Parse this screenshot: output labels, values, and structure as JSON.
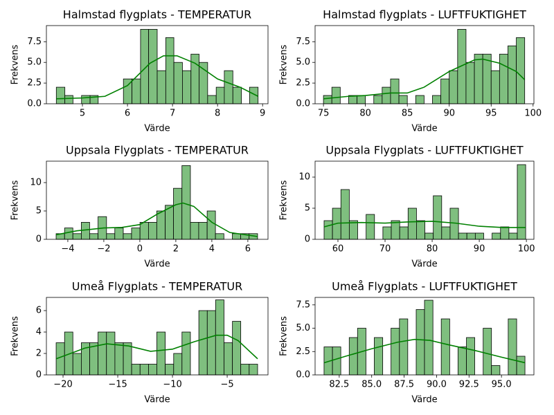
{
  "chart_data": [
    {
      "type": "histogram",
      "title": "Halmstad flygplats - TEMPERATUR",
      "x_label": "Värde",
      "y_label": "Frekvens",
      "color": "#7fbf7f",
      "bins": [
        4.42,
        4.61,
        4.79,
        4.98,
        5.17,
        5.35,
        5.54,
        5.73,
        5.91,
        6.1,
        6.29,
        6.47,
        6.66,
        6.85,
        7.03,
        7.22,
        7.41,
        7.59,
        7.78,
        7.97,
        8.15,
        8.34,
        8.53,
        8.71,
        8.9
      ],
      "counts": [
        2,
        1,
        0,
        1,
        1,
        0,
        0,
        0,
        3,
        3,
        9,
        9,
        4,
        8,
        5,
        4,
        6,
        5,
        1,
        2,
        4,
        2,
        0,
        2
      ],
      "line": {
        "color": "green",
        "x": [
          4.42,
          5.0,
          5.5,
          6.0,
          6.5,
          6.8,
          7.1,
          7.5,
          8.0,
          8.5,
          8.9
        ],
        "values": [
          0.6,
          0.7,
          0.9,
          2.2,
          4.9,
          5.8,
          5.8,
          4.9,
          3.0,
          2.0,
          0.9
        ]
      },
      "xlim": [
        4.2,
        9.12
      ],
      "xticks": [
        5,
        6,
        7,
        8,
        9
      ],
      "ylim": [
        0,
        9.45
      ],
      "yticks": [
        {
          "value": 0,
          "label": "0.0"
        },
        2.5,
        {
          "value": 5,
          "label": "5.0"
        },
        7.5
      ]
    },
    {
      "type": "histogram",
      "title": "Halmstad flygplats - LUFTFUKTIGHET",
      "x_label": "Värde",
      "y_label": "Frekvens",
      "color": "#7fbf7f",
      "bins": [
        75,
        76,
        77,
        78,
        79,
        80,
        81,
        82,
        83,
        84,
        85,
        86,
        87,
        88,
        89,
        90,
        91,
        92,
        93,
        94,
        95,
        96,
        97,
        98,
        99
      ],
      "counts": [
        1,
        2,
        0,
        1,
        1,
        0,
        1,
        2,
        3,
        1,
        0,
        1,
        0,
        1,
        3,
        4,
        9,
        5,
        6,
        6,
        4,
        6,
        7,
        8
      ],
      "line": {
        "color": "green",
        "x": [
          75,
          78,
          80,
          83,
          85,
          87,
          90,
          93,
          94,
          96,
          98,
          99
        ],
        "values": [
          0.6,
          0.9,
          1.0,
          1.3,
          1.3,
          2.0,
          3.9,
          5.3,
          5.4,
          4.9,
          3.9,
          2.9
        ]
      },
      "xlim": [
        74.0,
        100.1
      ],
      "xticks": [
        75,
        80,
        85,
        90,
        95,
        100
      ],
      "ylim": [
        0,
        9.45
      ],
      "yticks": [
        {
          "value": 0,
          "label": "0.0"
        },
        2.5,
        {
          "value": 5,
          "label": "5.0"
        },
        7.5
      ]
    },
    {
      "type": "histogram",
      "title": "Uppsala Flygplats - TEMPERATUR",
      "x_label": "Värde",
      "y_label": "Frekvens",
      "color": "#7fbf7f",
      "bins": [
        -4.65,
        -4.18,
        -3.72,
        -3.25,
        -2.79,
        -2.32,
        -1.85,
        -1.39,
        -0.92,
        -0.46,
        0.01,
        0.48,
        0.94,
        1.41,
        1.87,
        2.34,
        2.81,
        3.27,
        3.74,
        4.2,
        4.67,
        5.14,
        5.6,
        6.07,
        6.54
      ],
      "counts": [
        1,
        2,
        1,
        3,
        1,
        4,
        1,
        2,
        1,
        2,
        3,
        3,
        5,
        6,
        9,
        13,
        3,
        3,
        5,
        1,
        0,
        1,
        1,
        1
      ],
      "line": {
        "color": "green",
        "x": [
          -4.65,
          -3.5,
          -2,
          -1,
          0,
          1,
          2,
          2.4,
          3,
          4,
          5,
          6.54
        ],
        "values": [
          0.8,
          1.5,
          2.0,
          2.1,
          2.6,
          4.5,
          6.1,
          6.4,
          5.8,
          3.0,
          1.2,
          0.5
        ]
      },
      "xlim": [
        -5.19,
        7.12
      ],
      "xticks": [
        {
          "value": -4,
          "label": "−4"
        },
        {
          "value": -2,
          "label": "−2"
        },
        0,
        2,
        4,
        6
      ],
      "ylim": [
        0,
        13.78
      ],
      "yticks": [
        0,
        5,
        10
      ]
    },
    {
      "type": "histogram",
      "title": "Uppsala Flygplats - LUFTFUKTIGHET",
      "x_label": "Värde",
      "y_label": "Frekvens",
      "color": "#7fbf7f",
      "bins": [
        57.06,
        58.84,
        60.63,
        62.41,
        64.19,
        65.98,
        67.76,
        69.54,
        71.32,
        73.11,
        74.89,
        76.67,
        78.46,
        80.24,
        82.02,
        83.81,
        85.59,
        87.37,
        89.16,
        90.94,
        92.72,
        94.51,
        96.29,
        98.07,
        99.85
      ],
      "counts": [
        3,
        5,
        8,
        3,
        0,
        4,
        0,
        2,
        3,
        2,
        5,
        3,
        1,
        7,
        2,
        5,
        1,
        1,
        1,
        0,
        1,
        2,
        1,
        12
      ],
      "line": {
        "color": "green",
        "x": [
          57.06,
          60,
          65,
          70,
          75,
          80,
          85,
          90,
          95,
          99.85
        ],
        "values": [
          2.0,
          2.6,
          2.7,
          2.6,
          2.8,
          2.9,
          2.6,
          2.1,
          1.9,
          1.9
        ]
      },
      "xlim": [
        55.15,
        101.6
      ],
      "xticks": [
        60,
        70,
        80,
        90,
        100
      ],
      "ylim": [
        0,
        12.56
      ],
      "yticks": [
        0,
        5,
        10
      ]
    },
    {
      "type": "histogram",
      "title": "Umeå Flygplats - TEMPERATUR",
      "x_label": "Värde",
      "y_label": "Frekvens",
      "color": "#7fbf7f",
      "bins": [
        -20.63,
        -19.86,
        -19.1,
        -18.33,
        -17.56,
        -16.8,
        -16.03,
        -15.26,
        -14.49,
        -13.73,
        -12.96,
        -12.19,
        -11.43,
        -10.66,
        -9.89,
        -9.13,
        -8.36,
        -7.59,
        -6.82,
        -6.06,
        -5.29,
        -4.52,
        -3.76,
        -2.99,
        -2.22
      ],
      "counts": [
        3,
        4,
        2,
        3,
        3,
        4,
        4,
        3,
        3,
        1,
        1,
        1,
        4,
        1,
        2,
        4,
        0,
        6,
        6,
        7,
        3,
        5,
        1,
        1
      ],
      "line": {
        "color": "green",
        "x": [
          -20.63,
          -18,
          -16,
          -14,
          -12,
          -10,
          -8,
          -6,
          -5,
          -4,
          -2.22
        ],
        "values": [
          1.5,
          2.5,
          2.9,
          2.7,
          2.2,
          2.4,
          3.1,
          3.7,
          3.7,
          3.2,
          1.5
        ]
      },
      "xlim": [
        -21.52,
        -1.27
      ],
      "xticks": [
        {
          "value": -20,
          "label": "−20"
        },
        {
          "value": -15,
          "label": "−15"
        },
        {
          "value": -10,
          "label": "−10"
        },
        {
          "value": -5,
          "label": "−5"
        }
      ],
      "ylim": [
        0,
        7.23
      ],
      "yticks": [
        0,
        2,
        4,
        6
      ]
    },
    {
      "type": "histogram",
      "title": "Umeå Flygplats - LUFTFUKTIGHET",
      "x_label": "Värde",
      "y_label": "Frekvens",
      "color": "#7fbf7f",
      "bins": [
        81.33,
        81.98,
        82.62,
        83.27,
        83.91,
        84.56,
        85.2,
        85.85,
        86.49,
        87.14,
        87.78,
        88.43,
        89.07,
        89.72,
        90.36,
        91.01,
        91.65,
        92.3,
        92.94,
        93.59,
        94.23,
        94.88,
        95.52,
        96.17,
        96.81
      ],
      "counts": [
        3,
        3,
        0,
        4,
        5,
        0,
        4,
        0,
        5,
        6,
        0,
        7,
        8,
        0,
        6,
        0,
        3,
        4,
        0,
        5,
        1,
        0,
        6,
        2
      ],
      "line": {
        "color": "green",
        "x": [
          81.33,
          83,
          85,
          87,
          88.3,
          89.5,
          91,
          93,
          95,
          96.81
        ],
        "values": [
          1.3,
          2.0,
          2.8,
          3.5,
          3.8,
          3.7,
          3.2,
          2.6,
          1.9,
          1.3
        ]
      },
      "xlim": [
        80.64,
        97.5
      ],
      "xticks": [
        82.5,
        {
          "value": 85,
          "label": "85.0"
        },
        87.5,
        {
          "value": 90,
          "label": "90.0"
        },
        92.5,
        {
          "value": 95,
          "label": "95.0"
        }
      ],
      "ylim": [
        0,
        8.3
      ],
      "yticks": [
        {
          "value": 0,
          "label": "0.0"
        },
        2.5,
        {
          "value": 5,
          "label": "5.0"
        },
        7.5
      ]
    }
  ]
}
